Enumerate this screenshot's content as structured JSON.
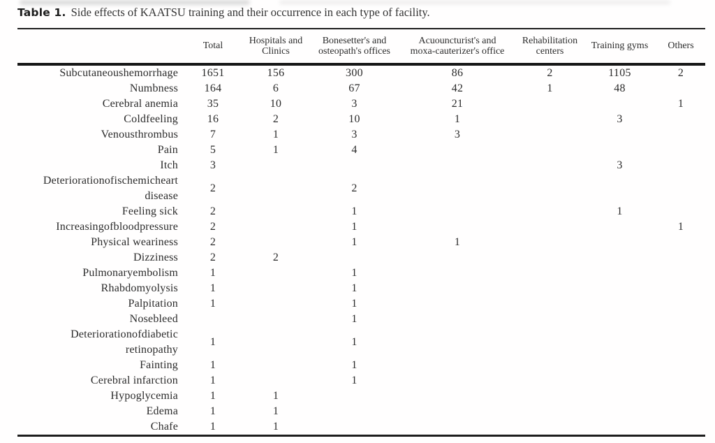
{
  "caption": {
    "label": "Table 1.",
    "text": "Side effects of KAATSU training and their occurrence in each type of facility."
  },
  "table": {
    "columns": [
      "",
      "Total",
      "Hospitals and\nClinics",
      "Bonesetter's and\nosteopath's offices",
      "Acuouncturist's and\nmoxa-cauterizer's office",
      "Rehabilitation\ncenters",
      "Training gyms",
      "Others"
    ],
    "rows": [
      {
        "label": "Subcutaneoushemorrhage",
        "values": [
          "1651",
          "156",
          "300",
          "86",
          "2",
          "1105",
          "2"
        ]
      },
      {
        "label": "Numbness",
        "values": [
          "164",
          "6",
          "67",
          "42",
          "1",
          "48",
          ""
        ]
      },
      {
        "label": "Cerebral anemia",
        "values": [
          "35",
          "10",
          "3",
          "21",
          "",
          "",
          "1"
        ]
      },
      {
        "label": "Coldfeeling",
        "values": [
          "16",
          "2",
          "10",
          "1",
          "",
          "3",
          ""
        ]
      },
      {
        "label": "Venousthrombus",
        "values": [
          "7",
          "1",
          "3",
          "3",
          "",
          "",
          ""
        ]
      },
      {
        "label": "Pain",
        "values": [
          "5",
          "1",
          "4",
          "",
          "",
          "",
          ""
        ]
      },
      {
        "label": "Itch",
        "values": [
          "3",
          "",
          "",
          "",
          "",
          "3",
          ""
        ]
      },
      {
        "label": "Deteriorationofischemicheart\ndisease",
        "values": [
          "2",
          "",
          "2",
          "",
          "",
          "",
          ""
        ]
      },
      {
        "label": "Feeling sick",
        "values": [
          "2",
          "",
          "1",
          "",
          "",
          "1",
          ""
        ]
      },
      {
        "label": "Increasingofbloodpressure",
        "values": [
          "2",
          "",
          "1",
          "",
          "",
          "",
          "1"
        ]
      },
      {
        "label": "Physical weariness",
        "values": [
          "2",
          "",
          "1",
          "1",
          "",
          "",
          ""
        ]
      },
      {
        "label": "Dizziness",
        "values": [
          "2",
          "2",
          "",
          "",
          "",
          "",
          ""
        ]
      },
      {
        "label": "Pulmonaryembolism",
        "values": [
          "1",
          "",
          "1",
          "",
          "",
          "",
          ""
        ]
      },
      {
        "label": "Rhabdomyolysis",
        "values": [
          "1",
          "",
          "1",
          "",
          "",
          "",
          ""
        ]
      },
      {
        "label": "Palpitation",
        "values": [
          "1",
          "",
          "1",
          "",
          "",
          "",
          ""
        ]
      },
      {
        "label": "Nosebleed",
        "values": [
          "",
          "",
          "1",
          "",
          "",
          "",
          ""
        ]
      },
      {
        "label": "Deteriorationofdiabetic\nretinopathy",
        "values": [
          "1",
          "",
          "1",
          "",
          "",
          "",
          ""
        ]
      },
      {
        "label": "Fainting",
        "values": [
          "1",
          "",
          "1",
          "",
          "",
          "",
          ""
        ]
      },
      {
        "label": "Cerebral infarction",
        "values": [
          "1",
          "",
          "1",
          "",
          "",
          "",
          ""
        ]
      },
      {
        "label": "Hypoglycemia",
        "values": [
          "1",
          "1",
          "",
          "",
          "",
          "",
          ""
        ]
      },
      {
        "label": "Edema",
        "values": [
          "1",
          "1",
          "",
          "",
          "",
          "",
          ""
        ]
      },
      {
        "label": "Chafe",
        "values": [
          "1",
          "1",
          "",
          "",
          "",
          "",
          ""
        ]
      }
    ]
  }
}
